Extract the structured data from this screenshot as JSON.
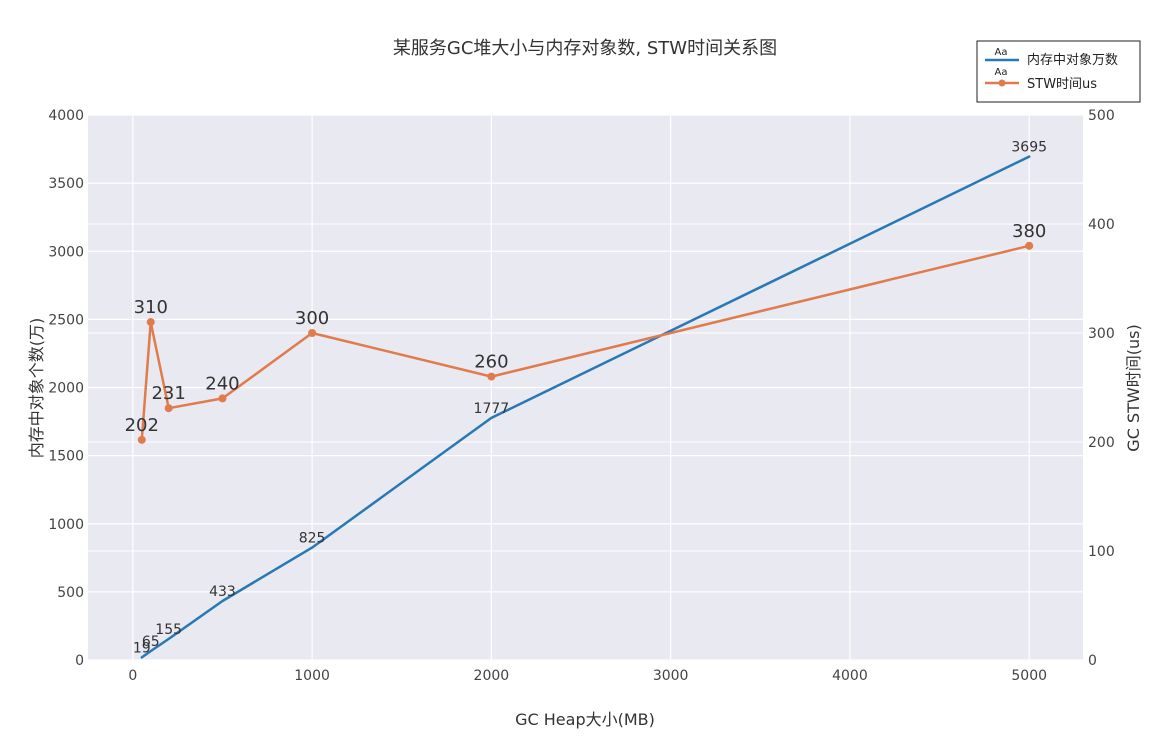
{
  "chart_data": {
    "type": "line",
    "title": "某服务GC堆大小与内存对象数, STW时间关系图",
    "xlabel": "GC Heap大小(MB)",
    "ylabel": "内存中对象个数(万)",
    "y2label": "GC STW时间(us)",
    "xlim": [
      -250,
      5300
    ],
    "ylim": [
      0,
      4000
    ],
    "y2lim": [
      0,
      500
    ],
    "xticks": [
      0,
      1000,
      2000,
      3000,
      4000,
      5000
    ],
    "yticks": [
      0,
      500,
      1000,
      1500,
      2000,
      2500,
      3000,
      3500,
      4000
    ],
    "y2ticks": [
      0,
      100,
      200,
      300,
      400,
      500
    ],
    "grid": true,
    "legend_position": "top-right",
    "legend_glyph": "Aa",
    "series": [
      {
        "name": "内存中对象万数",
        "axis": "y",
        "color": "#2878b5",
        "marker": false,
        "label_size": 14,
        "x": [
          50,
          100,
          200,
          500,
          1000,
          2000,
          5000
        ],
        "values": [
          19,
          65,
          155,
          433,
          825,
          1777,
          3695
        ],
        "labels": [
          "19",
          "65",
          "155",
          "433",
          "825",
          "1777",
          "3695"
        ]
      },
      {
        "name": "STW时间us",
        "axis": "y2",
        "color": "#e07b4c",
        "marker": true,
        "label_size": 18,
        "x": [
          50,
          100,
          200,
          500,
          1000,
          2000,
          5000
        ],
        "values": [
          202,
          310,
          231,
          240,
          300,
          260,
          380
        ],
        "labels": [
          "202",
          "310",
          "231",
          "240",
          "300",
          "260",
          "380"
        ]
      }
    ]
  }
}
